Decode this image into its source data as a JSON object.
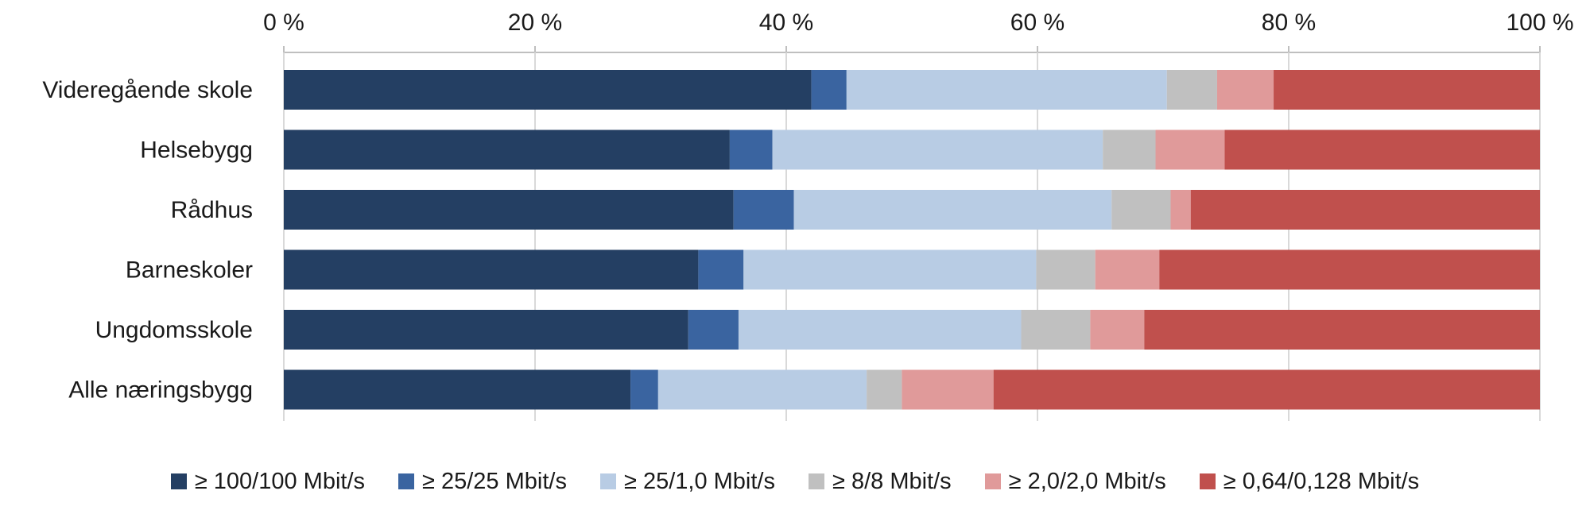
{
  "chart_data": {
    "type": "bar",
    "orientation": "horizontal",
    "stacked": true,
    "percent": true,
    "categories": [
      "Videregående skole",
      "Helsebygg",
      "Rådhus",
      "Barneskoler",
      "Ungdomsskole",
      "Alle næringsbygg"
    ],
    "xlim": [
      0,
      100
    ],
    "ticks": [
      "0 %",
      "20 %",
      "40 %",
      "60 %",
      "80 %",
      "100 %"
    ],
    "tick_values": [
      0,
      20,
      40,
      60,
      80,
      100
    ],
    "axis_position": "top",
    "grid": true,
    "legend_position": "bottom",
    "series": [
      {
        "name": "≥ 100/100 Mbit/s",
        "color": "#243f63",
        "values": [
          42.0,
          35.5,
          35.8,
          33.0,
          32.2,
          27.6
        ]
      },
      {
        "name": "≥ 25/25 Mbit/s",
        "color": "#3a64a0",
        "values": [
          2.8,
          3.4,
          4.8,
          3.6,
          4.0,
          2.2
        ]
      },
      {
        "name": "≥ 25/1,0 Mbit/s",
        "color": "#b8cce4",
        "values": [
          25.5,
          26.3,
          25.3,
          23.3,
          22.5,
          16.6
        ]
      },
      {
        "name": "≥ 8/8 Mbit/s",
        "color": "#c0c0c0",
        "values": [
          4.0,
          4.2,
          4.7,
          4.7,
          5.5,
          2.8
        ]
      },
      {
        "name": "≥ 2,0/2,0 Mbit/s",
        "color": "#e09a9a",
        "values": [
          4.5,
          5.5,
          1.6,
          5.1,
          4.3,
          7.3
        ]
      },
      {
        "name": "≥ 0,64/0,128 Mbit/s",
        "color": "#c0504d",
        "values": [
          21.2,
          25.1,
          27.8,
          30.3,
          31.5,
          43.5
        ]
      }
    ]
  }
}
